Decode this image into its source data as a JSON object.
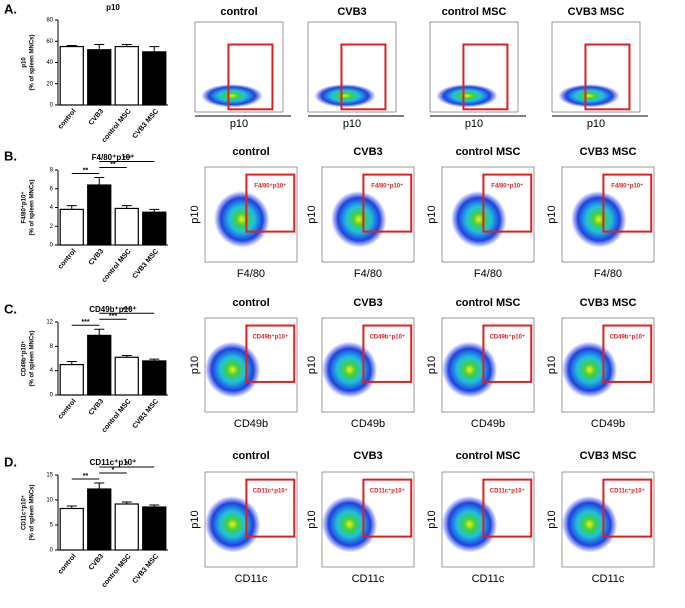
{
  "chart_data": [
    {
      "type": "bar",
      "panel_label": "A.",
      "title": "p10",
      "ylabel": [
        "p10",
        "(% of spleen MNCs)"
      ],
      "categories": [
        "control",
        "CVB3",
        "control MSC",
        "CVB3 MSC"
      ],
      "values": [
        55,
        52,
        55,
        50
      ],
      "errors": [
        1,
        5,
        2,
        5
      ],
      "colors": [
        "#ffffff",
        "#000000",
        "#ffffff",
        "#000000"
      ],
      "ylim": [
        0,
        80
      ],
      "yticks": [
        0,
        20,
        40,
        60,
        80
      ],
      "significance": []
    },
    {
      "type": "bar",
      "panel_label": "B.",
      "title": "F4/80⁺p10⁺",
      "ylabel": [
        "F4/80⁺p10⁺",
        "(% of spleen MNCs)"
      ],
      "categories": [
        "control",
        "CVB3",
        "control MSC",
        "CVB3 MSC"
      ],
      "values": [
        3.8,
        6.4,
        3.9,
        3.5
      ],
      "errors": [
        0.4,
        0.8,
        0.3,
        0.3
      ],
      "colors": [
        "#ffffff",
        "#000000",
        "#ffffff",
        "#000000"
      ],
      "ylim": [
        0,
        8
      ],
      "yticks": [
        0,
        2,
        4,
        6,
        8
      ],
      "significance": [
        {
          "text": "**",
          "from": 0,
          "to": 1
        },
        {
          "text": "**",
          "from": 1,
          "to": 2
        },
        {
          "text": "***",
          "from": 1,
          "to": 3
        }
      ]
    },
    {
      "type": "bar",
      "panel_label": "C.",
      "title": "CD49b⁺p10⁺",
      "ylabel": [
        "CD49b⁺p10⁺",
        "(% of spleen MNCs)"
      ],
      "categories": [
        "control",
        "CVB3",
        "control MSC",
        "CVB3 MSC"
      ],
      "values": [
        5,
        9.8,
        6.2,
        5.6
      ],
      "errors": [
        0.5,
        1,
        0.3,
        0.3
      ],
      "colors": [
        "#ffffff",
        "#000000",
        "#ffffff",
        "#000000"
      ],
      "ylim": [
        0,
        12
      ],
      "yticks": [
        0,
        4,
        8,
        12
      ],
      "significance": [
        {
          "text": "***",
          "from": 0,
          "to": 1
        },
        {
          "text": "***",
          "from": 1,
          "to": 2
        },
        {
          "text": "***",
          "from": 1,
          "to": 3
        }
      ]
    },
    {
      "type": "bar",
      "panel_label": "D.",
      "title": "CD11c⁺p10⁺",
      "ylabel": [
        "CD11c⁺p10⁺",
        "(% of spleen MNCs)"
      ],
      "categories": [
        "control",
        "CVB3",
        "control MSC",
        "CVB3 MSC"
      ],
      "values": [
        8.3,
        12.2,
        9.2,
        8.6
      ],
      "errors": [
        0.5,
        1.2,
        0.4,
        0.4
      ],
      "colors": [
        "#ffffff",
        "#000000",
        "#ffffff",
        "#000000"
      ],
      "ylim": [
        0,
        15
      ],
      "yticks": [
        0,
        5,
        10,
        15
      ],
      "significance": [
        {
          "text": "**",
          "from": 0,
          "to": 1
        },
        {
          "text": "*",
          "from": 1,
          "to": 2
        },
        {
          "text": "*",
          "from": 1,
          "to": 3
        }
      ]
    }
  ],
  "flow_rows": [
    {
      "titles": [
        "control",
        "CVB3",
        "control MSC",
        "CVB3 MSC"
      ],
      "xlabel": "p10"
    },
    {
      "titles": [
        "control",
        "CVB3",
        "control MSC",
        "CVB3 MSC"
      ],
      "xlabel": "F4/80",
      "ylabel": "p10",
      "gate_label": "F4/80⁺p10⁺"
    },
    {
      "titles": [
        "control",
        "CVB3",
        "control MSC",
        "CVB3 MSC"
      ],
      "xlabel": "CD49b",
      "ylabel": "p10",
      "gate_label": "CD49b⁺p10⁺"
    },
    {
      "titles": [
        "control",
        "CVB3",
        "control MSC",
        "CVB3 MSC"
      ],
      "xlabel": "CD11c",
      "ylabel": "p10",
      "gate_label": "CD11c⁺p10⁺"
    }
  ]
}
